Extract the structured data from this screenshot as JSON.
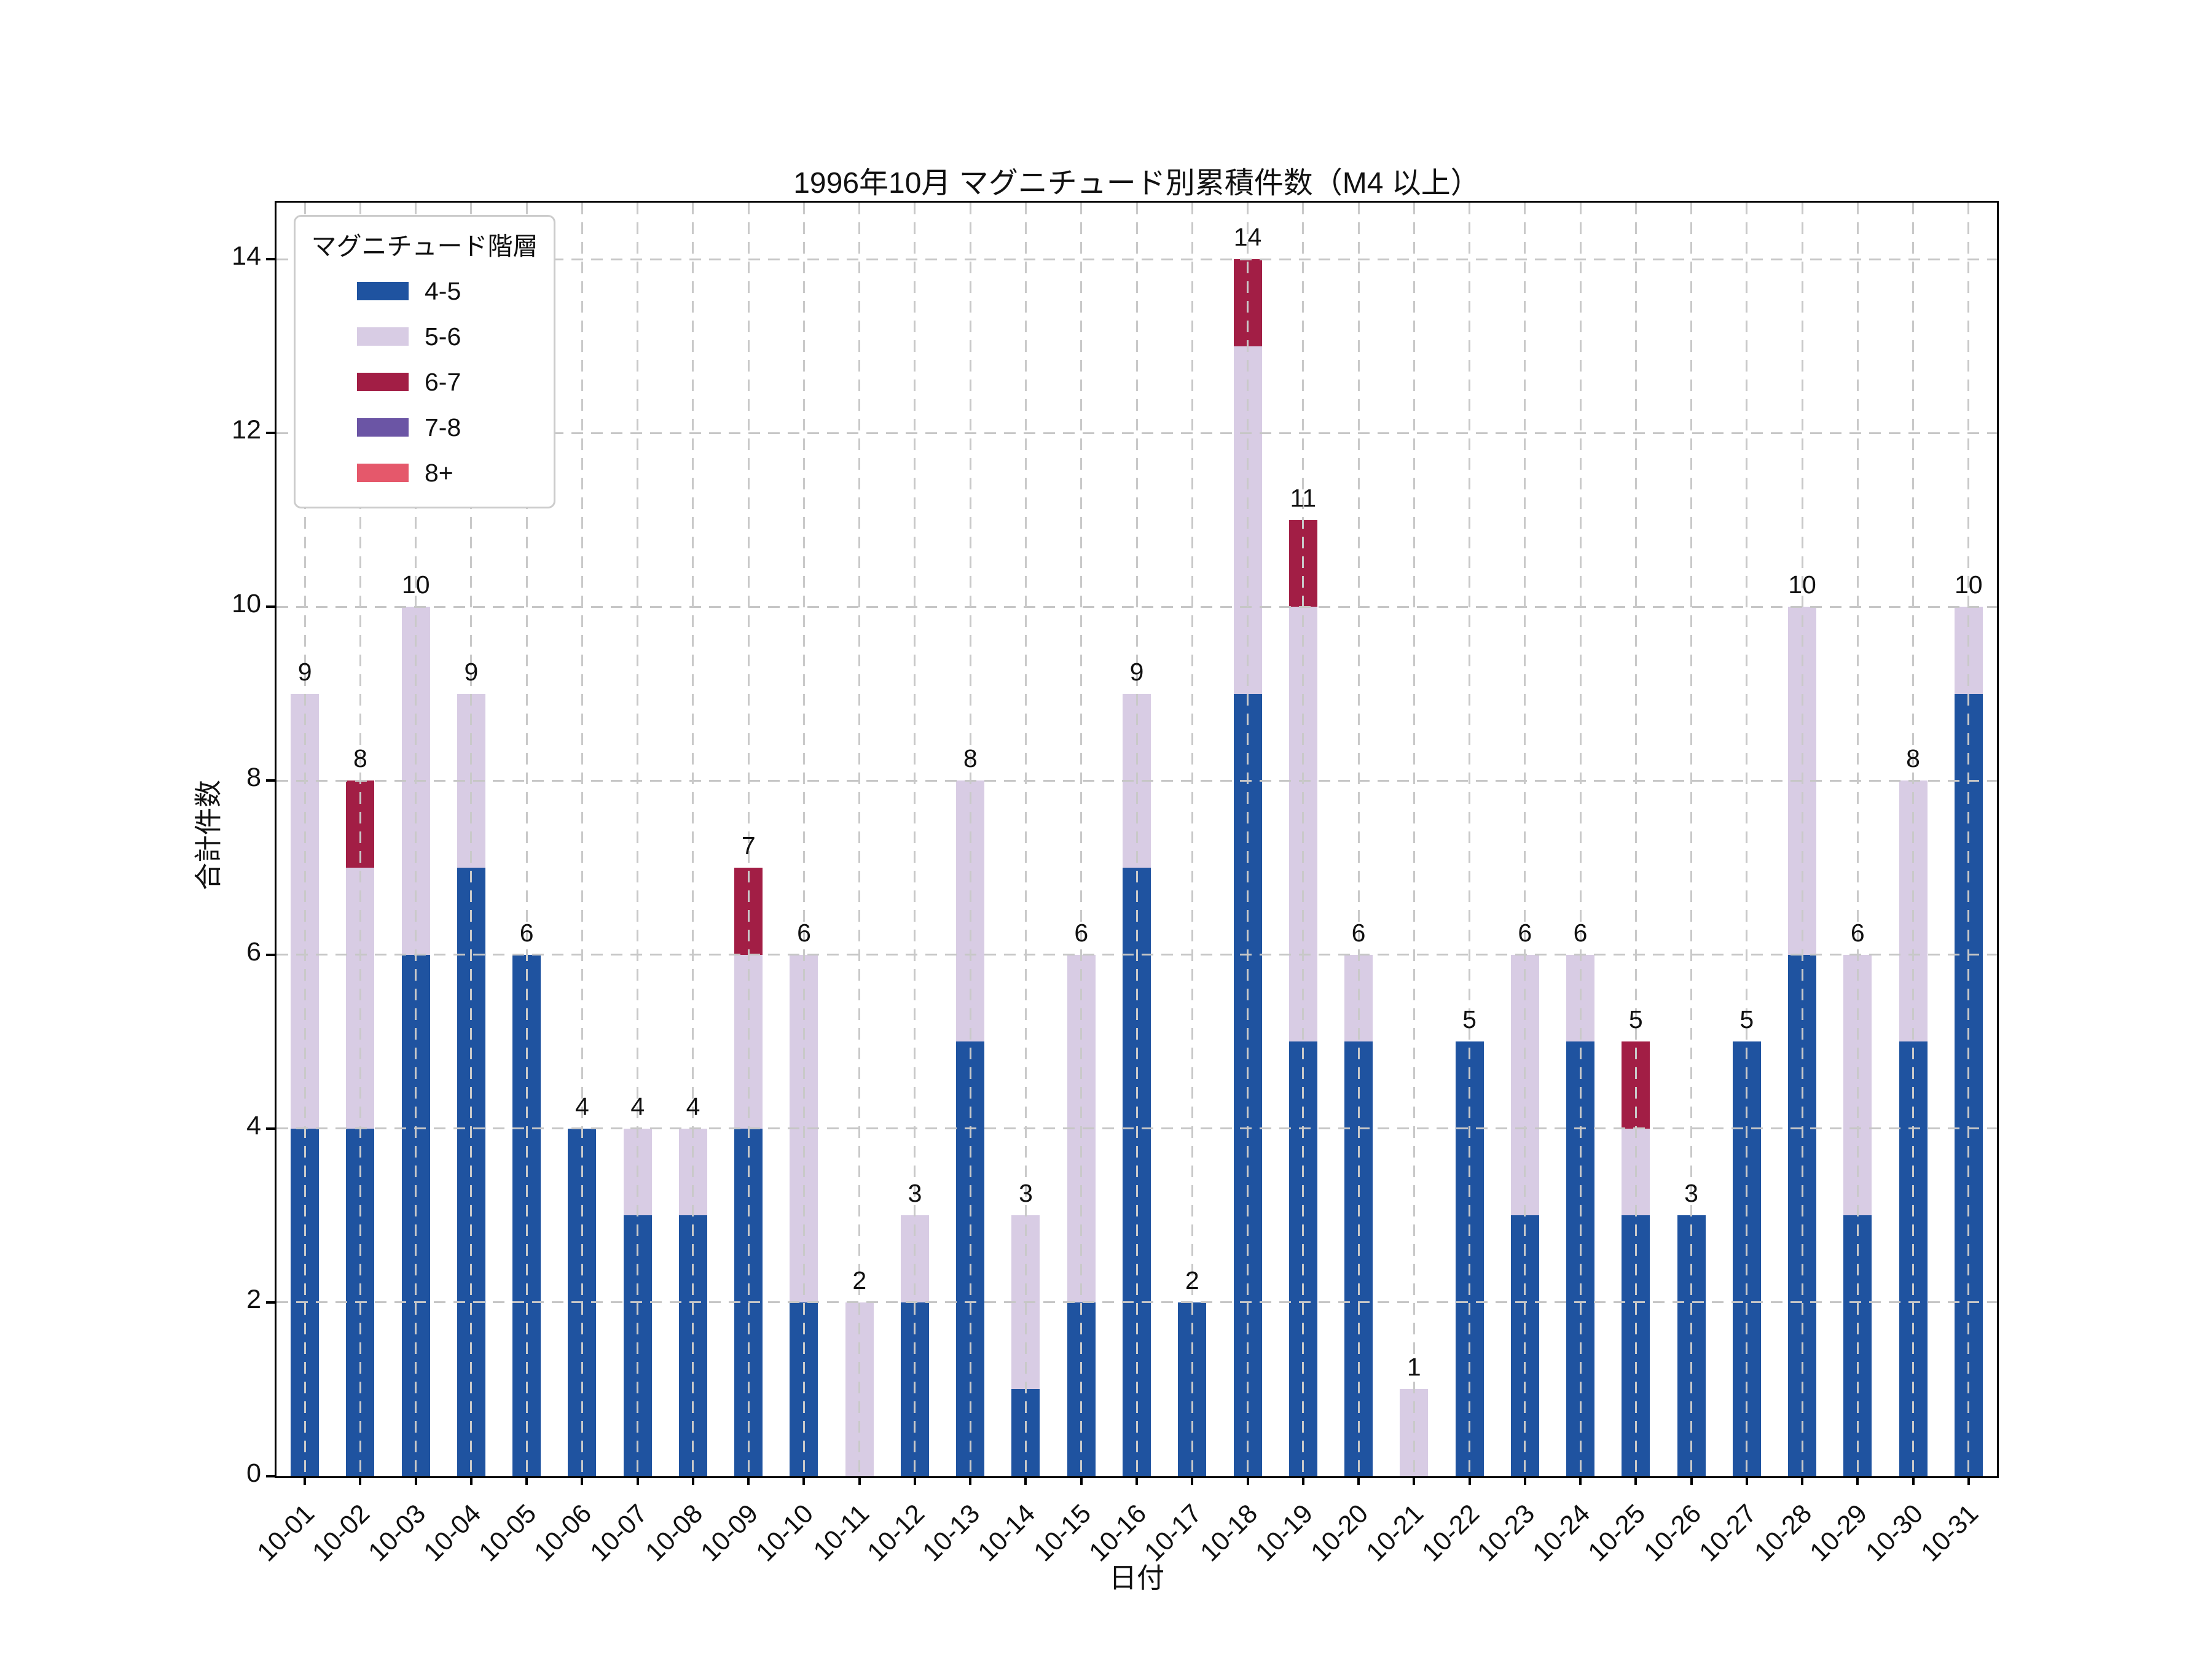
{
  "title": "1996年10月 マグニチュード別累積件数（M4 以上）",
  "x_axis": {
    "label": "日付"
  },
  "y_axis": {
    "label": "合計件数",
    "ticks": [
      0,
      2,
      4,
      6,
      8,
      10,
      12,
      14
    ]
  },
  "legend": {
    "title": "マグニチュード階層"
  },
  "colors": {
    "blue_4_5": "#1F53A0",
    "lavender_5_6": "#D8CCE4",
    "crimson_6_7": "#A21E45",
    "purple_7_8": "#6B55A5",
    "red_8_plus": "#E5586B",
    "grid": "#c8c8c8",
    "spine": "#000000"
  },
  "chart_data": {
    "type": "bar",
    "stacked": true,
    "title": "1996年10月 マグニチュード別累積件数（M4 以上）",
    "xlabel": "日付",
    "ylabel": "合計件数",
    "ylim": [
      0,
      14.65
    ],
    "grid": true,
    "legend_position": "upper-left",
    "categories": [
      "10-01",
      "10-02",
      "10-03",
      "10-04",
      "10-05",
      "10-06",
      "10-07",
      "10-08",
      "10-09",
      "10-10",
      "10-11",
      "10-12",
      "10-13",
      "10-14",
      "10-15",
      "10-16",
      "10-17",
      "10-18",
      "10-19",
      "10-20",
      "10-21",
      "10-22",
      "10-23",
      "10-24",
      "10-25",
      "10-26",
      "10-27",
      "10-28",
      "10-29",
      "10-30",
      "10-31"
    ],
    "series": [
      {
        "name": "4-5",
        "color": "#1F53A0",
        "values": [
          4,
          4,
          6,
          7,
          6,
          4,
          3,
          3,
          4,
          2,
          0,
          2,
          5,
          1,
          2,
          7,
          2,
          9,
          5,
          5,
          0,
          5,
          3,
          5,
          3,
          3,
          5,
          6,
          3,
          5,
          9
        ]
      },
      {
        "name": "5-6",
        "color": "#D8CCE4",
        "values": [
          5,
          3,
          4,
          2,
          0,
          0,
          1,
          1,
          2,
          4,
          2,
          1,
          3,
          2,
          4,
          2,
          0,
          4,
          5,
          1,
          1,
          0,
          3,
          1,
          1,
          0,
          0,
          4,
          3,
          3,
          1
        ]
      },
      {
        "name": "6-7",
        "color": "#A21E45",
        "values": [
          0,
          1,
          0,
          0,
          0,
          0,
          0,
          0,
          1,
          0,
          0,
          0,
          0,
          0,
          0,
          0,
          0,
          1,
          1,
          0,
          0,
          0,
          0,
          0,
          1,
          0,
          0,
          0,
          0,
          0,
          0
        ]
      },
      {
        "name": "7-8",
        "color": "#6B55A5",
        "values": [
          0,
          0,
          0,
          0,
          0,
          0,
          0,
          0,
          0,
          0,
          0,
          0,
          0,
          0,
          0,
          0,
          0,
          0,
          0,
          0,
          0,
          0,
          0,
          0,
          0,
          0,
          0,
          0,
          0,
          0,
          0
        ]
      },
      {
        "name": "8+",
        "color": "#E5586B",
        "values": [
          0,
          0,
          0,
          0,
          0,
          0,
          0,
          0,
          0,
          0,
          0,
          0,
          0,
          0,
          0,
          0,
          0,
          0,
          0,
          0,
          0,
          0,
          0,
          0,
          0,
          0,
          0,
          0,
          0,
          0,
          0
        ]
      }
    ],
    "totals": [
      9,
      8,
      10,
      9,
      6,
      4,
      4,
      4,
      7,
      6,
      2,
      3,
      8,
      3,
      6,
      9,
      2,
      14,
      11,
      6,
      1,
      5,
      6,
      6,
      5,
      3,
      5,
      10,
      6,
      8,
      10
    ]
  }
}
